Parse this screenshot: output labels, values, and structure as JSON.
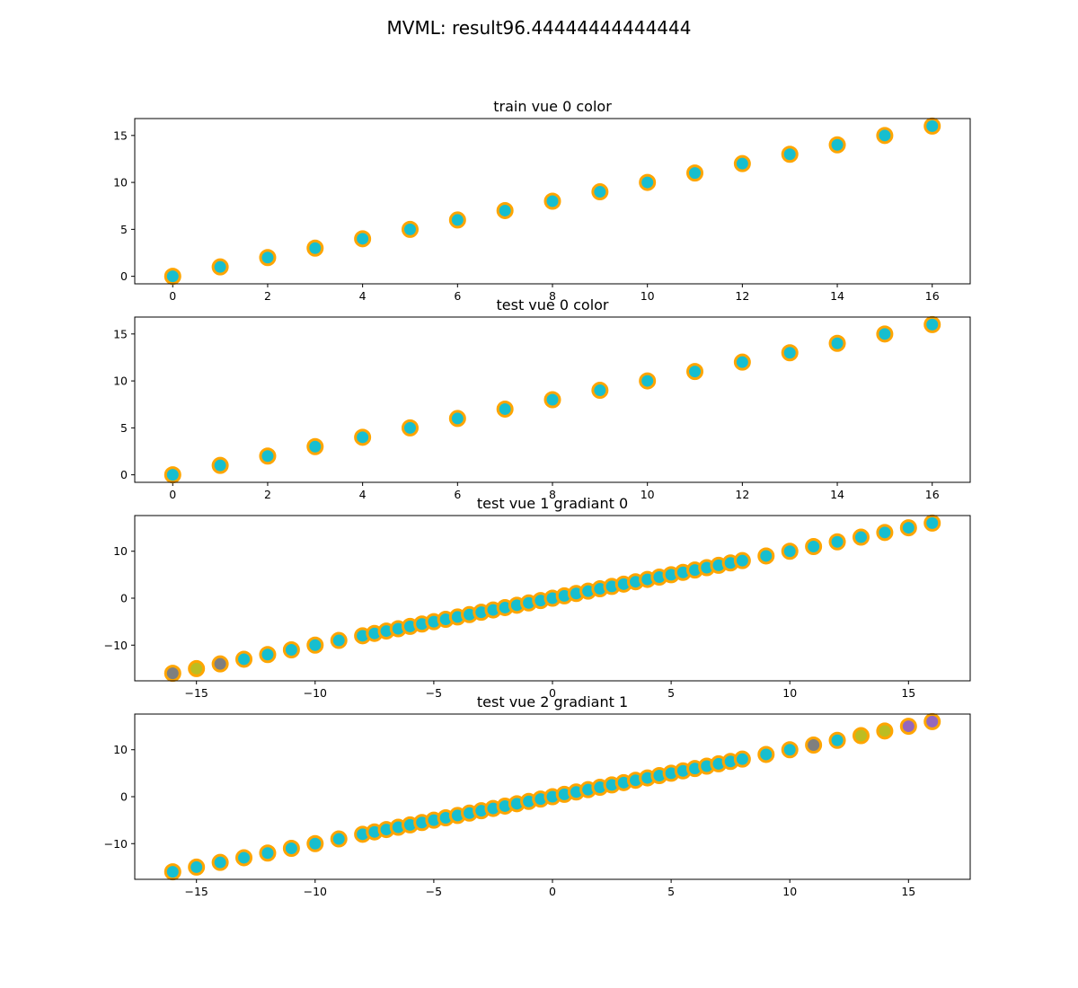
{
  "figure": {
    "suptitle": "MVML: result96.44444444444444"
  },
  "colors": {
    "edge": "#ffa500",
    "cyan": "#17becf",
    "gray": "#7f7f7f",
    "olive": "#bcbd22",
    "purple": "#9467bd"
  },
  "chart_data": [
    {
      "type": "scatter",
      "title": "train vue 0 color",
      "xlim": [
        -0.8,
        16.8
      ],
      "ylim": [
        -0.8,
        16.8
      ],
      "xticks": [
        "0",
        "2",
        "4",
        "6",
        "8",
        "10",
        "12",
        "14",
        "16"
      ],
      "yticks": [
        "0",
        "5",
        "10",
        "15"
      ],
      "points": [
        {
          "x": 0,
          "y": 0,
          "c": "cyan"
        },
        {
          "x": 1,
          "y": 1,
          "c": "cyan"
        },
        {
          "x": 2,
          "y": 2,
          "c": "cyan"
        },
        {
          "x": 3,
          "y": 3,
          "c": "cyan"
        },
        {
          "x": 4,
          "y": 4,
          "c": "cyan"
        },
        {
          "x": 5,
          "y": 5,
          "c": "cyan"
        },
        {
          "x": 6,
          "y": 6,
          "c": "cyan"
        },
        {
          "x": 7,
          "y": 7,
          "c": "cyan"
        },
        {
          "x": 8,
          "y": 8,
          "c": "cyan"
        },
        {
          "x": 9,
          "y": 9,
          "c": "cyan"
        },
        {
          "x": 10,
          "y": 10,
          "c": "cyan"
        },
        {
          "x": 11,
          "y": 11,
          "c": "cyan"
        },
        {
          "x": 12,
          "y": 12,
          "c": "cyan"
        },
        {
          "x": 13,
          "y": 13,
          "c": "cyan"
        },
        {
          "x": 14,
          "y": 14,
          "c": "cyan"
        },
        {
          "x": 15,
          "y": 15,
          "c": "cyan"
        },
        {
          "x": 16,
          "y": 16,
          "c": "cyan"
        }
      ]
    },
    {
      "type": "scatter",
      "title": "test vue 0 color",
      "xlim": [
        -0.8,
        16.8
      ],
      "ylim": [
        -0.8,
        16.8
      ],
      "xticks": [
        "0",
        "2",
        "4",
        "6",
        "8",
        "10",
        "12",
        "14",
        "16"
      ],
      "yticks": [
        "0",
        "5",
        "10",
        "15"
      ],
      "points": [
        {
          "x": 0,
          "y": 0,
          "c": "cyan"
        },
        {
          "x": 1,
          "y": 1,
          "c": "cyan"
        },
        {
          "x": 2,
          "y": 2,
          "c": "cyan"
        },
        {
          "x": 3,
          "y": 3,
          "c": "cyan"
        },
        {
          "x": 4,
          "y": 4,
          "c": "cyan"
        },
        {
          "x": 5,
          "y": 5,
          "c": "cyan"
        },
        {
          "x": 6,
          "y": 6,
          "c": "cyan"
        },
        {
          "x": 7,
          "y": 7,
          "c": "cyan"
        },
        {
          "x": 8,
          "y": 8,
          "c": "cyan"
        },
        {
          "x": 9,
          "y": 9,
          "c": "cyan"
        },
        {
          "x": 10,
          "y": 10,
          "c": "cyan"
        },
        {
          "x": 11,
          "y": 11,
          "c": "cyan"
        },
        {
          "x": 12,
          "y": 12,
          "c": "cyan"
        },
        {
          "x": 13,
          "y": 13,
          "c": "cyan"
        },
        {
          "x": 14,
          "y": 14,
          "c": "cyan"
        },
        {
          "x": 15,
          "y": 15,
          "c": "cyan"
        },
        {
          "x": 16,
          "y": 16,
          "c": "cyan"
        }
      ]
    },
    {
      "type": "scatter",
      "title": "test vue 1 gradiant 0",
      "xlim": [
        -17.6,
        17.6
      ],
      "ylim": [
        -17.6,
        17.6
      ],
      "xticks": [
        "−15",
        "−10",
        "−5",
        "0",
        "5",
        "10",
        "15"
      ],
      "yticks": [
        "−10",
        "0",
        "10"
      ],
      "points": [
        {
          "x": -16,
          "y": -16,
          "c": "gray"
        },
        {
          "x": -15,
          "y": -15,
          "c": "olive"
        },
        {
          "x": -14,
          "y": -14,
          "c": "gray"
        },
        {
          "x": -13,
          "y": -13,
          "c": "cyan"
        },
        {
          "x": -12,
          "y": -12,
          "c": "cyan"
        },
        {
          "x": -11,
          "y": -11,
          "c": "cyan"
        },
        {
          "x": -10,
          "y": -10,
          "c": "cyan"
        },
        {
          "x": -9,
          "y": -9,
          "c": "cyan"
        },
        {
          "x": -8,
          "y": -8,
          "c": "cyan"
        },
        {
          "x": -7.5,
          "y": -7.5,
          "c": "cyan"
        },
        {
          "x": -7,
          "y": -7,
          "c": "cyan"
        },
        {
          "x": -6.5,
          "y": -6.5,
          "c": "cyan"
        },
        {
          "x": -6,
          "y": -6,
          "c": "cyan"
        },
        {
          "x": -5.5,
          "y": -5.5,
          "c": "cyan"
        },
        {
          "x": -5,
          "y": -5,
          "c": "cyan"
        },
        {
          "x": -4.5,
          "y": -4.5,
          "c": "cyan"
        },
        {
          "x": -4,
          "y": -4,
          "c": "cyan"
        },
        {
          "x": -3.5,
          "y": -3.5,
          "c": "cyan"
        },
        {
          "x": -3,
          "y": -3,
          "c": "cyan"
        },
        {
          "x": -2.5,
          "y": -2.5,
          "c": "cyan"
        },
        {
          "x": -2,
          "y": -2,
          "c": "cyan"
        },
        {
          "x": -1.5,
          "y": -1.5,
          "c": "cyan"
        },
        {
          "x": -1,
          "y": -1,
          "c": "cyan"
        },
        {
          "x": -0.5,
          "y": -0.5,
          "c": "cyan"
        },
        {
          "x": 0,
          "y": 0,
          "c": "cyan"
        },
        {
          "x": 0.5,
          "y": 0.5,
          "c": "cyan"
        },
        {
          "x": 1,
          "y": 1,
          "c": "cyan"
        },
        {
          "x": 1.5,
          "y": 1.5,
          "c": "cyan"
        },
        {
          "x": 2,
          "y": 2,
          "c": "cyan"
        },
        {
          "x": 2.5,
          "y": 2.5,
          "c": "cyan"
        },
        {
          "x": 3,
          "y": 3,
          "c": "cyan"
        },
        {
          "x": 3.5,
          "y": 3.5,
          "c": "cyan"
        },
        {
          "x": 4,
          "y": 4,
          "c": "cyan"
        },
        {
          "x": 4.5,
          "y": 4.5,
          "c": "cyan"
        },
        {
          "x": 5,
          "y": 5,
          "c": "cyan"
        },
        {
          "x": 5.5,
          "y": 5.5,
          "c": "cyan"
        },
        {
          "x": 6,
          "y": 6,
          "c": "cyan"
        },
        {
          "x": 6.5,
          "y": 6.5,
          "c": "cyan"
        },
        {
          "x": 7,
          "y": 7,
          "c": "cyan"
        },
        {
          "x": 7.5,
          "y": 7.5,
          "c": "cyan"
        },
        {
          "x": 8,
          "y": 8,
          "c": "cyan"
        },
        {
          "x": 9,
          "y": 9,
          "c": "cyan"
        },
        {
          "x": 10,
          "y": 10,
          "c": "cyan"
        },
        {
          "x": 11,
          "y": 11,
          "c": "cyan"
        },
        {
          "x": 12,
          "y": 12,
          "c": "cyan"
        },
        {
          "x": 13,
          "y": 13,
          "c": "cyan"
        },
        {
          "x": 14,
          "y": 14,
          "c": "cyan"
        },
        {
          "x": 15,
          "y": 15,
          "c": "cyan"
        },
        {
          "x": 16,
          "y": 16,
          "c": "cyan"
        }
      ]
    },
    {
      "type": "scatter",
      "title": "test vue 2 gradiant 1",
      "xlim": [
        -17.6,
        17.6
      ],
      "ylim": [
        -17.6,
        17.6
      ],
      "xticks": [
        "−15",
        "−10",
        "−5",
        "0",
        "5",
        "10",
        "15"
      ],
      "yticks": [
        "−10",
        "0",
        "10"
      ],
      "points": [
        {
          "x": -16,
          "y": -16,
          "c": "cyan"
        },
        {
          "x": -15,
          "y": -15,
          "c": "cyan"
        },
        {
          "x": -14,
          "y": -14,
          "c": "cyan"
        },
        {
          "x": -13,
          "y": -13,
          "c": "cyan"
        },
        {
          "x": -12,
          "y": -12,
          "c": "cyan"
        },
        {
          "x": -11,
          "y": -11,
          "c": "cyan"
        },
        {
          "x": -10,
          "y": -10,
          "c": "cyan"
        },
        {
          "x": -9,
          "y": -9,
          "c": "cyan"
        },
        {
          "x": -8,
          "y": -8,
          "c": "cyan"
        },
        {
          "x": -7.5,
          "y": -7.5,
          "c": "cyan"
        },
        {
          "x": -7,
          "y": -7,
          "c": "cyan"
        },
        {
          "x": -6.5,
          "y": -6.5,
          "c": "cyan"
        },
        {
          "x": -6,
          "y": -6,
          "c": "cyan"
        },
        {
          "x": -5.5,
          "y": -5.5,
          "c": "cyan"
        },
        {
          "x": -5,
          "y": -5,
          "c": "cyan"
        },
        {
          "x": -4.5,
          "y": -4.5,
          "c": "cyan"
        },
        {
          "x": -4,
          "y": -4,
          "c": "cyan"
        },
        {
          "x": -3.5,
          "y": -3.5,
          "c": "cyan"
        },
        {
          "x": -3,
          "y": -3,
          "c": "cyan"
        },
        {
          "x": -2.5,
          "y": -2.5,
          "c": "cyan"
        },
        {
          "x": -2,
          "y": -2,
          "c": "cyan"
        },
        {
          "x": -1.5,
          "y": -1.5,
          "c": "cyan"
        },
        {
          "x": -1,
          "y": -1,
          "c": "cyan"
        },
        {
          "x": -0.5,
          "y": -0.5,
          "c": "cyan"
        },
        {
          "x": 0,
          "y": 0,
          "c": "cyan"
        },
        {
          "x": 0.5,
          "y": 0.5,
          "c": "cyan"
        },
        {
          "x": 1,
          "y": 1,
          "c": "cyan"
        },
        {
          "x": 1.5,
          "y": 1.5,
          "c": "cyan"
        },
        {
          "x": 2,
          "y": 2,
          "c": "cyan"
        },
        {
          "x": 2.5,
          "y": 2.5,
          "c": "cyan"
        },
        {
          "x": 3,
          "y": 3,
          "c": "cyan"
        },
        {
          "x": 3.5,
          "y": 3.5,
          "c": "cyan"
        },
        {
          "x": 4,
          "y": 4,
          "c": "cyan"
        },
        {
          "x": 4.5,
          "y": 4.5,
          "c": "cyan"
        },
        {
          "x": 5,
          "y": 5,
          "c": "cyan"
        },
        {
          "x": 5.5,
          "y": 5.5,
          "c": "cyan"
        },
        {
          "x": 6,
          "y": 6,
          "c": "cyan"
        },
        {
          "x": 6.5,
          "y": 6.5,
          "c": "cyan"
        },
        {
          "x": 7,
          "y": 7,
          "c": "cyan"
        },
        {
          "x": 7.5,
          "y": 7.5,
          "c": "cyan"
        },
        {
          "x": 8,
          "y": 8,
          "c": "cyan"
        },
        {
          "x": 9,
          "y": 9,
          "c": "cyan"
        },
        {
          "x": 10,
          "y": 10,
          "c": "cyan"
        },
        {
          "x": 11,
          "y": 11,
          "c": "gray"
        },
        {
          "x": 12,
          "y": 12,
          "c": "cyan"
        },
        {
          "x": 13,
          "y": 13,
          "c": "olive"
        },
        {
          "x": 14,
          "y": 14,
          "c": "olive"
        },
        {
          "x": 15,
          "y": 15,
          "c": "purple"
        },
        {
          "x": 16,
          "y": 16,
          "c": "purple"
        }
      ]
    }
  ]
}
